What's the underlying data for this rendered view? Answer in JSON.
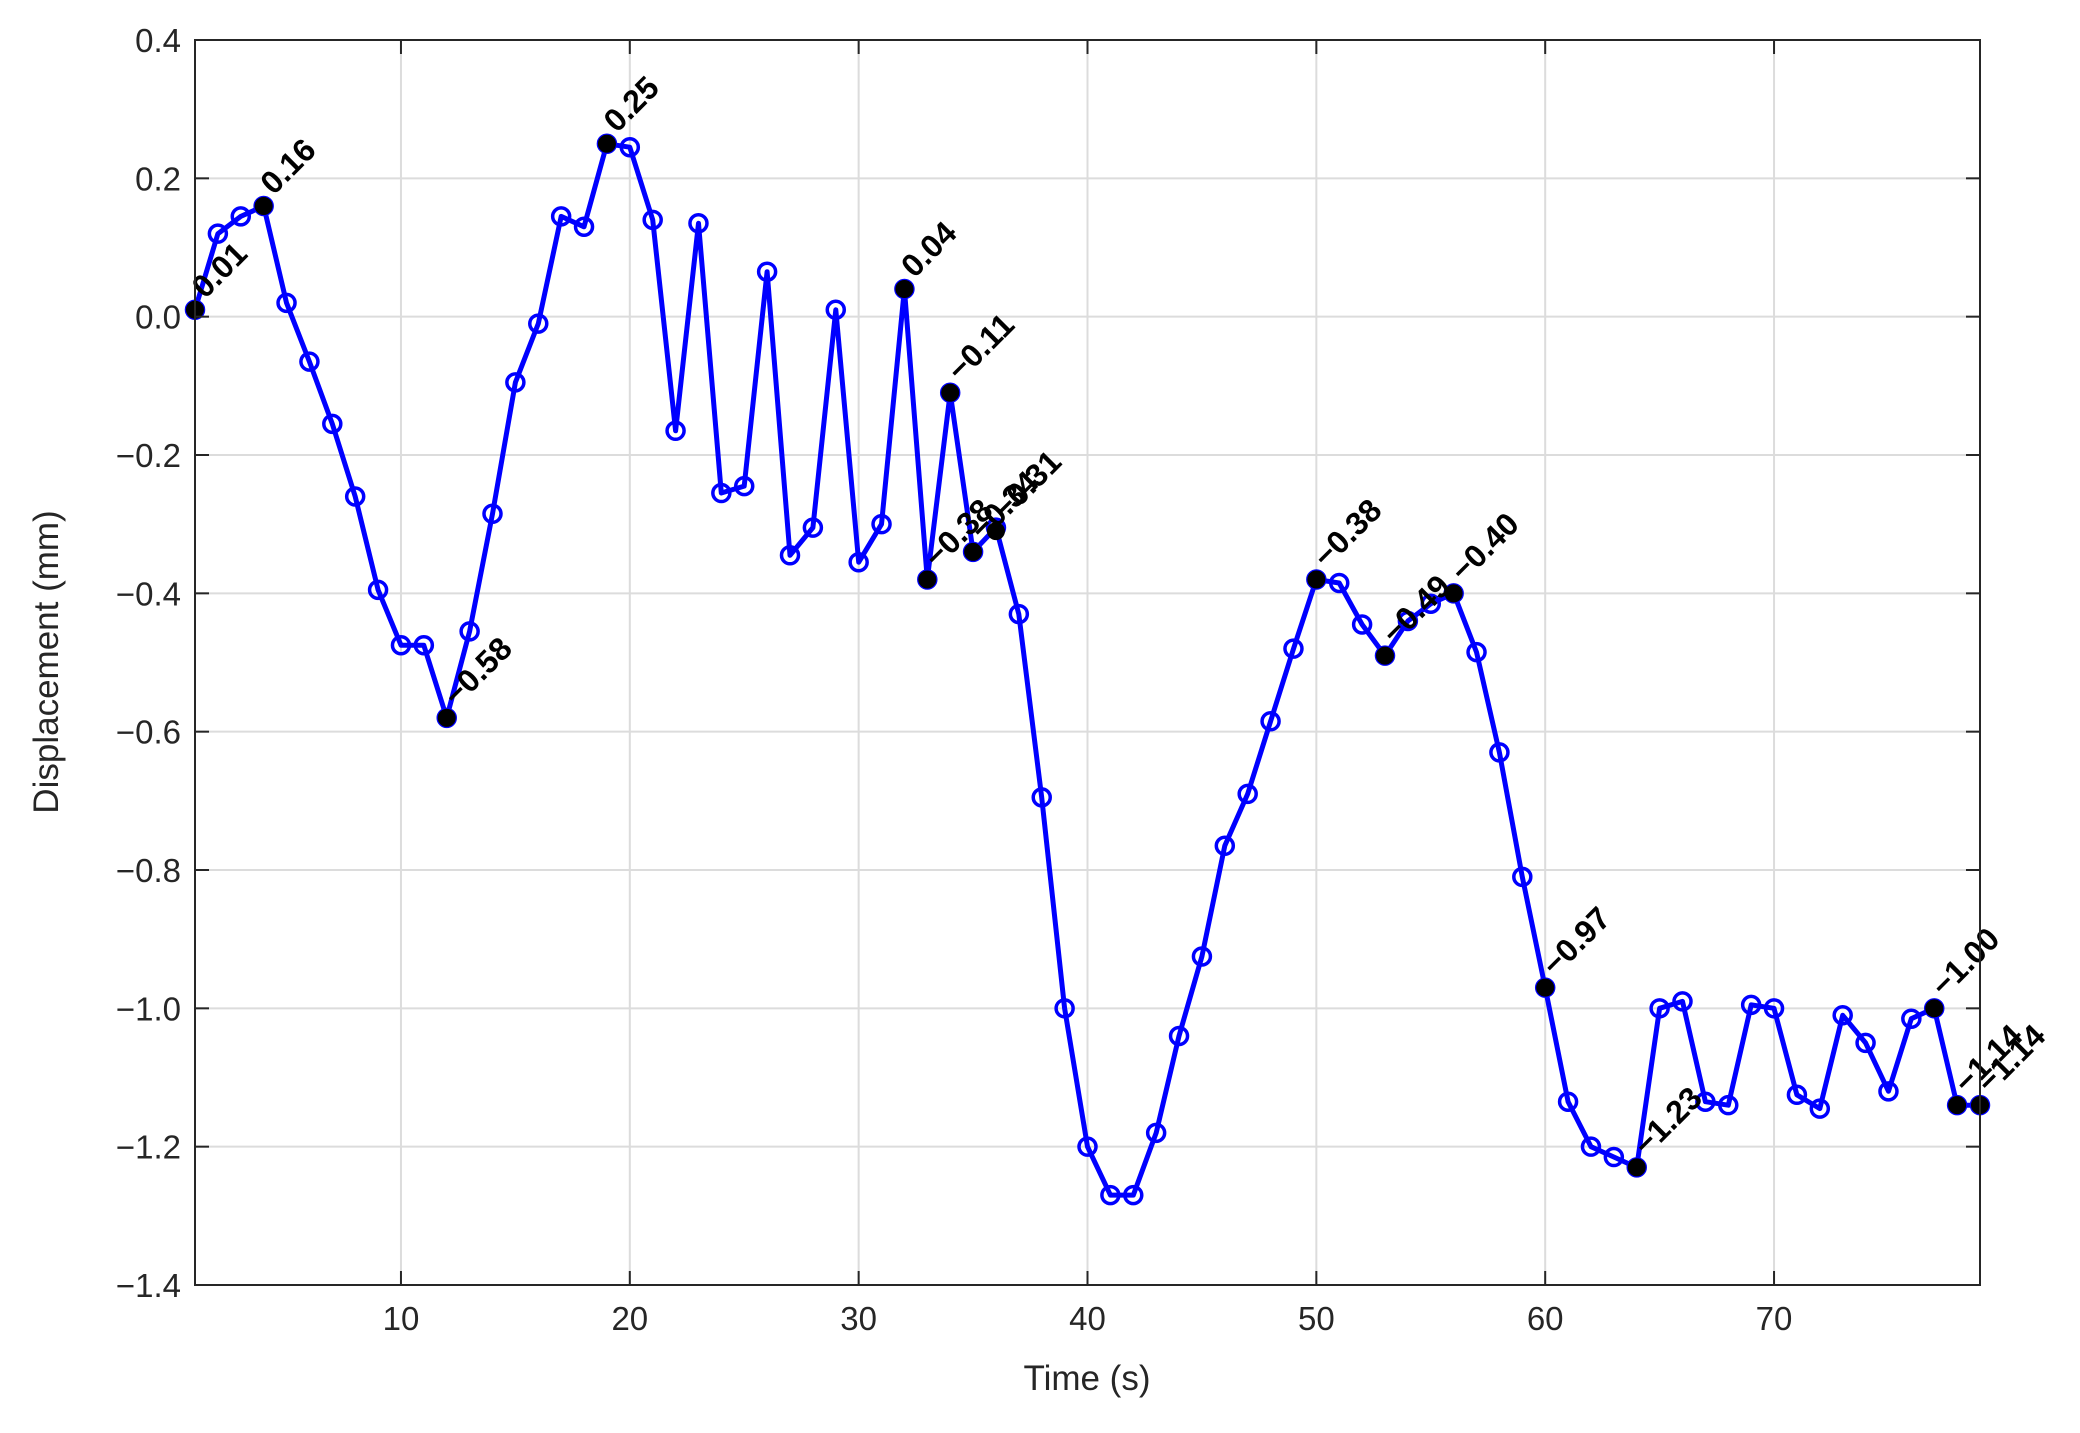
{
  "chart_data": {
    "type": "line",
    "title": "",
    "xlabel": "Time (s)",
    "ylabel": "Displacement (mm)",
    "xlim": [
      1,
      79
    ],
    "ylim": [
      -1.4,
      0.4
    ],
    "x_ticks": [
      10,
      20,
      30,
      40,
      50,
      60,
      70
    ],
    "y_ticks": [
      0.4,
      0.2,
      0.0,
      -0.2,
      -0.4,
      -0.6,
      -0.8,
      -1.0,
      -1.2,
      -1.4
    ],
    "x_tick_labels": [
      "10",
      "20",
      "30",
      "40",
      "50",
      "60",
      "70"
    ],
    "y_tick_labels": [
      "0.4",
      "0.2",
      "0.0",
      "−0.2",
      "−0.4",
      "−0.6",
      "−0.8",
      "−1.0",
      "−1.2",
      "−1.4"
    ],
    "grid": true,
    "series": [
      {
        "color": "#0000ff",
        "marker": "open-circle",
        "x": [
          1,
          2,
          3,
          4,
          5,
          6,
          7,
          8,
          9,
          10,
          11,
          12,
          13,
          14,
          15,
          16,
          17,
          18,
          19,
          20,
          21,
          22,
          23,
          24,
          25,
          26,
          27,
          28,
          29,
          30,
          31,
          32,
          33,
          34,
          35,
          36,
          37,
          38,
          39,
          40,
          41,
          42,
          43,
          44,
          45,
          46,
          47,
          48,
          49,
          50,
          51,
          52,
          53,
          54,
          55,
          56,
          57,
          58,
          59,
          60,
          61,
          62,
          63,
          64,
          65,
          66,
          67,
          68,
          69,
          70,
          71,
          72,
          73,
          74,
          75,
          76,
          77,
          78,
          79
        ],
        "y": [
          0.01,
          0.12,
          0.145,
          0.16,
          0.02,
          -0.065,
          -0.155,
          -0.26,
          -0.395,
          -0.475,
          -0.475,
          -0.58,
          -0.455,
          -0.285,
          -0.095,
          -0.01,
          0.145,
          0.13,
          0.25,
          0.245,
          0.14,
          -0.165,
          0.135,
          -0.255,
          -0.245,
          0.065,
          -0.345,
          -0.305,
          0.01,
          -0.355,
          -0.3,
          0.04,
          -0.38,
          -0.11,
          -0.34,
          -0.305,
          -0.43,
          -0.695,
          -1.0,
          -1.2,
          -1.27,
          -1.27,
          -1.18,
          -1.04,
          -0.925,
          -0.765,
          -0.69,
          -0.585,
          -0.48,
          -0.38,
          -0.385,
          -0.445,
          -0.49,
          -0.44,
          -0.415,
          -0.4,
          -0.485,
          -0.63,
          -0.81,
          -0.97,
          -1.135,
          -1.2,
          -1.215,
          -1.23,
          -1.0,
          -0.99,
          -1.135,
          -1.14,
          -0.995,
          -1.0,
          -1.125,
          -1.145,
          -1.01,
          -1.05,
          -1.12,
          -1.015,
          -1.0,
          -1.14,
          -1.14
        ]
      }
    ],
    "annotations": [
      {
        "x": 1,
        "y": 0.01,
        "label": "0.01"
      },
      {
        "x": 4,
        "y": 0.16,
        "label": "0.16"
      },
      {
        "x": 12,
        "y": -0.58,
        "label": "−0.58"
      },
      {
        "x": 19,
        "y": 0.25,
        "label": "0.25"
      },
      {
        "x": 32,
        "y": 0.04,
        "label": "0.04"
      },
      {
        "x": 33,
        "y": -0.38,
        "label": "−0.38"
      },
      {
        "x": 34,
        "y": -0.11,
        "label": "−0.11"
      },
      {
        "x": 35,
        "y": -0.34,
        "label": "−0.34"
      },
      {
        "x": 36,
        "y": -0.31,
        "label": "−0.31"
      },
      {
        "x": 50,
        "y": -0.38,
        "label": "−0.38"
      },
      {
        "x": 53,
        "y": -0.49,
        "label": "−0.49"
      },
      {
        "x": 56,
        "y": -0.4,
        "label": "−0.40"
      },
      {
        "x": 60,
        "y": -0.97,
        "label": "−0.97"
      },
      {
        "x": 64,
        "y": -1.23,
        "label": "−1.23"
      },
      {
        "x": 77,
        "y": -1.0,
        "label": "−1.00"
      },
      {
        "x": 78,
        "y": -1.14,
        "label": "−1.14"
      },
      {
        "x": 79,
        "y": -1.14,
        "label": "−1.14"
      }
    ]
  }
}
